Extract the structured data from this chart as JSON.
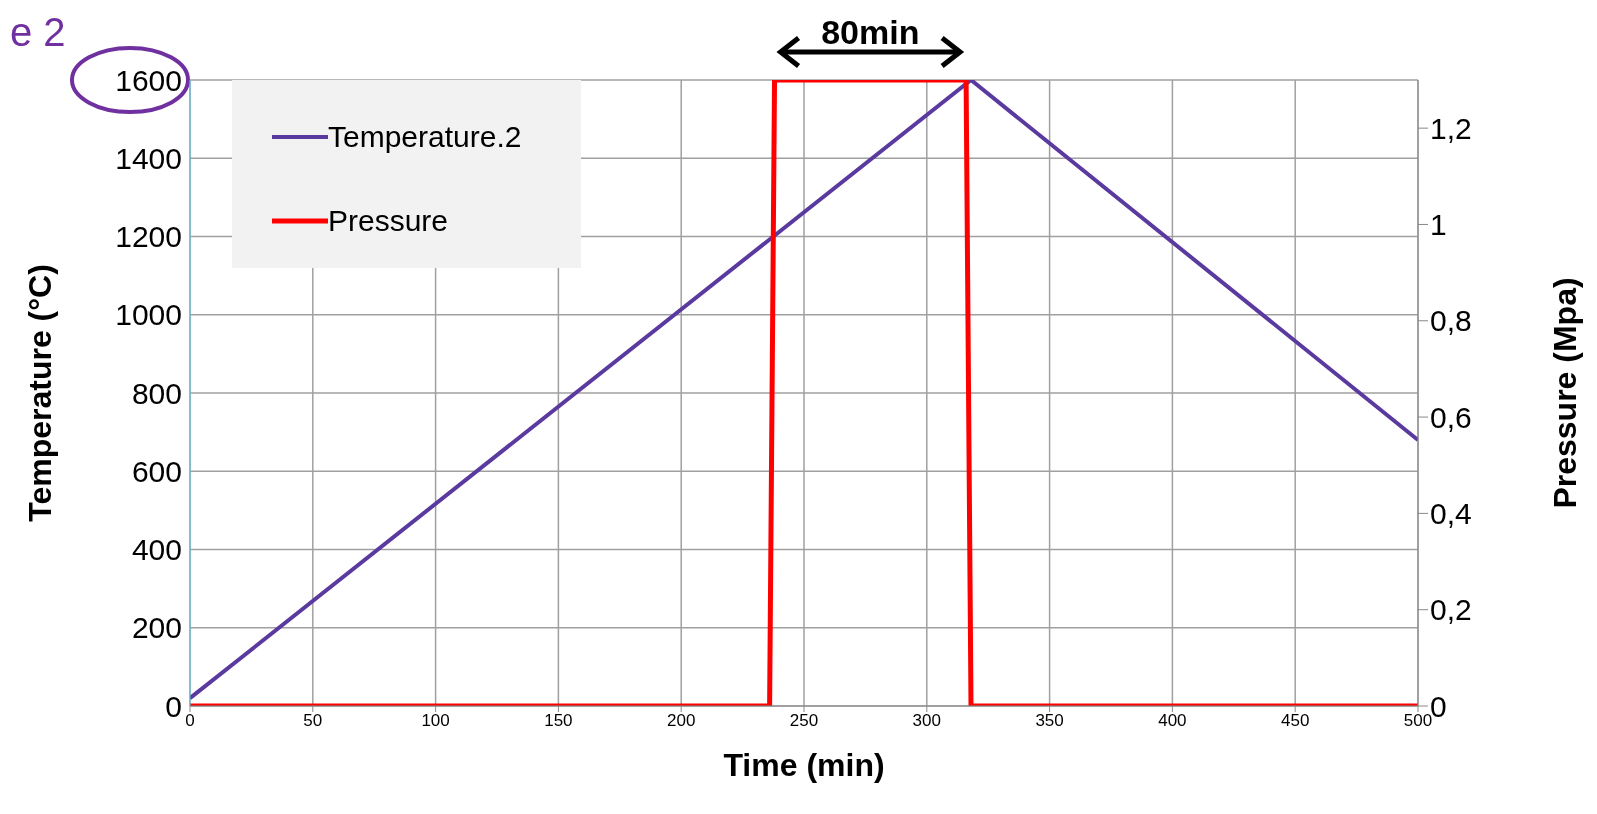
{
  "chart_data": {
    "type": "line",
    "xlabel": "Time (min)",
    "ylabel": "Temperature (°C)",
    "y2label": "Pressure (Mpa)",
    "xlim": [
      0,
      500
    ],
    "xticks": [
      0,
      50,
      100,
      150,
      200,
      250,
      300,
      350,
      400,
      450,
      500
    ],
    "ylim": [
      0,
      1600
    ],
    "yticks": [
      0,
      200,
      400,
      600,
      800,
      1000,
      1200,
      1400,
      1600
    ],
    "y2lim": [
      0,
      1.3
    ],
    "y2ticks": [
      0,
      {
        "value": 0.2,
        "label": "0,2"
      },
      {
        "value": 0.4,
        "label": "0,4"
      },
      {
        "value": 0.6,
        "label": "0,6"
      },
      {
        "value": 0.8,
        "label": "0,8"
      },
      1,
      {
        "value": 1.2,
        "label": "1,2"
      }
    ],
    "series": [
      {
        "name": "Temperature.2",
        "color": "#5b3aa0",
        "x": [
          0,
          318,
          500
        ],
        "values": [
          20,
          1600,
          680
        ]
      },
      {
        "name": "Pressure",
        "color": "#ff0000",
        "axis": "y2",
        "x": [
          0,
          236,
          238,
          316,
          318,
          500
        ],
        "values": [
          0,
          0,
          1.3,
          1.3,
          0,
          0
        ]
      }
    ],
    "grid": true,
    "legend": "top left",
    "annotations": [
      {
        "text": "80min",
        "x": 277,
        "y": 1600
      },
      "e 2"
    ]
  }
}
